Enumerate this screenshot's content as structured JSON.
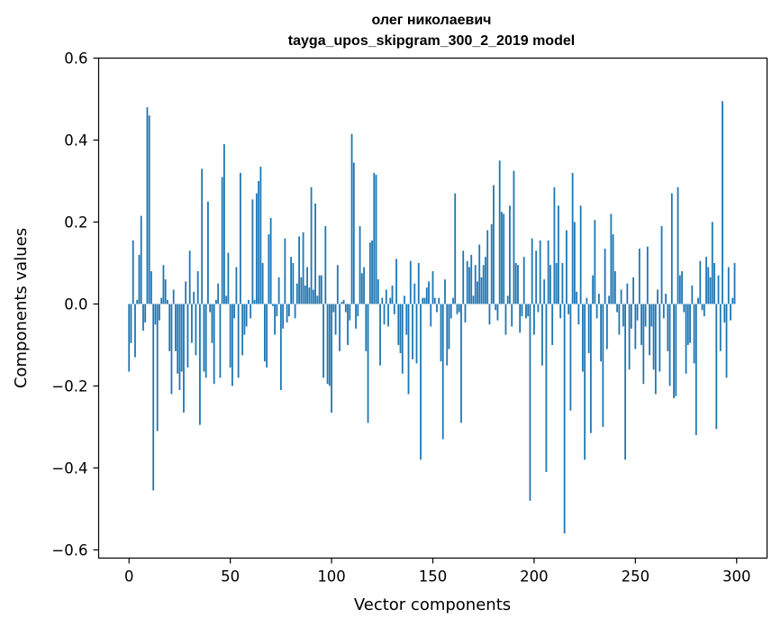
{
  "chart_data": {
    "type": "bar",
    "title": "олег николаевич",
    "subtitle": "tayga_upos_skipgram_300_2_2019 model",
    "xlabel": "Vector components",
    "ylabel": "Components values",
    "xlim": [
      -15,
      315
    ],
    "ylim": [
      -0.62,
      0.6
    ],
    "xticks": [
      0,
      50,
      100,
      150,
      200,
      250,
      300
    ],
    "yticks": [
      -0.6,
      -0.4,
      -0.2,
      0.0,
      0.2,
      0.4,
      0.6
    ],
    "ytick_labels": [
      "−0.6",
      "−0.4",
      "−0.2",
      "0.0",
      "0.2",
      "0.4",
      "0.6"
    ],
    "bar_color": "#1f77b4",
    "values": [
      -0.165,
      -0.095,
      0.155,
      -0.13,
      0.01,
      0.12,
      0.215,
      -0.065,
      -0.045,
      0.48,
      0.46,
      0.08,
      -0.455,
      -0.05,
      -0.31,
      -0.04,
      0.015,
      0.095,
      0.06,
      0.01,
      -0.115,
      -0.22,
      0.035,
      -0.115,
      -0.17,
      -0.21,
      -0.165,
      -0.265,
      0.055,
      -0.155,
      0.13,
      -0.095,
      0.03,
      -0.125,
      0.08,
      -0.295,
      0.33,
      -0.165,
      -0.18,
      0.25,
      -0.02,
      -0.095,
      -0.195,
      0.01,
      0.05,
      -0.18,
      0.31,
      0.39,
      0.02,
      0.125,
      -0.155,
      -0.2,
      -0.035,
      0.09,
      -0.18,
      0.32,
      -0.125,
      -0.075,
      -0.055,
      0.01,
      -0.035,
      0.255,
      0.01,
      0.27,
      0.3,
      0.335,
      0.1,
      -0.14,
      -0.155,
      0.17,
      0.21,
      -0.005,
      -0.075,
      -0.03,
      0.065,
      -0.21,
      -0.06,
      0.16,
      -0.045,
      -0.03,
      0.115,
      0.1,
      -0.035,
      0.05,
      0.165,
      0.065,
      0.175,
      0.045,
      0.09,
      0.04,
      0.285,
      0.035,
      0.245,
      0.02,
      0.07,
      0.07,
      -0.18,
      0.19,
      -0.195,
      -0.2,
      -0.265,
      -0.02,
      -0.075,
      0.095,
      -0.115,
      0.005,
      0.01,
      -0.02,
      -0.1,
      -0.04,
      0.415,
      0.345,
      -0.06,
      -0.03,
      0.19,
      0.075,
      0.09,
      -0.115,
      -0.29,
      0.15,
      0.155,
      0.32,
      0.315,
      0.06,
      -0.15,
      0.015,
      -0.05,
      0.035,
      -0.055,
      0.015,
      0.045,
      -0.025,
      0.11,
      -0.1,
      -0.12,
      -0.17,
      0.02,
      -0.075,
      -0.22,
      0.105,
      -0.135,
      0.05,
      -0.145,
      0.1,
      -0.38,
      0.015,
      0.015,
      0.04,
      0.055,
      -0.055,
      0.08,
      0.015,
      -0.02,
      0.015,
      -0.14,
      -0.33,
      0.06,
      -0.15,
      -0.11,
      -0.035,
      0.015,
      0.27,
      -0.025,
      -0.02,
      -0.29,
      0.13,
      -0.045,
      0.105,
      0.09,
      0.12,
      0.02,
      0.095,
      0.055,
      0.145,
      0.065,
      0.095,
      0.115,
      0.18,
      -0.05,
      0.195,
      0.29,
      -0.015,
      -0.04,
      0.35,
      0.225,
      0.22,
      -0.075,
      0.02,
      0.24,
      -0.055,
      0.325,
      0.1,
      0.095,
      -0.07,
      -0.03,
      0.115,
      -0.035,
      -0.03,
      -0.48,
      0.16,
      -0.075,
      0.13,
      -0.02,
      0.155,
      -0.15,
      0.06,
      -0.41,
      0.155,
      0.095,
      -0.1,
      0.285,
      0.1,
      0.24,
      -0.035,
      0.1,
      -0.56,
      0.18,
      -0.025,
      -0.26,
      0.32,
      0.2,
      0.03,
      -0.05,
      0.24,
      -0.165,
      -0.38,
      0.015,
      -0.12,
      -0.315,
      0.07,
      0.205,
      -0.035,
      0.025,
      -0.14,
      -0.3,
      0.135,
      -0.11,
      0.02,
      0.22,
      0.17,
      0.08,
      -0.02,
      -0.075,
      0.035,
      -0.055,
      -0.38,
      0.05,
      -0.16,
      -0.06,
      0.065,
      -0.11,
      -0.04,
      0.135,
      -0.1,
      -0.195,
      -0.055,
      0.14,
      -0.125,
      -0.055,
      -0.16,
      -0.22,
      0.035,
      -0.165,
      0.19,
      -0.035,
      0.025,
      -0.115,
      -0.2,
      0.27,
      -0.23,
      -0.225,
      0.285,
      0.07,
      0.08,
      -0.02,
      -0.17,
      -0.1,
      -0.095,
      0.045,
      -0.145,
      -0.32,
      0.015,
      0.105,
      -0.015,
      -0.03,
      0.115,
      0.09,
      0.065,
      0.2,
      0.1,
      -0.305,
      0.07,
      -0.115,
      0.495,
      -0.045,
      -0.18,
      0.09,
      -0.04,
      0.015,
      0.1
    ]
  }
}
